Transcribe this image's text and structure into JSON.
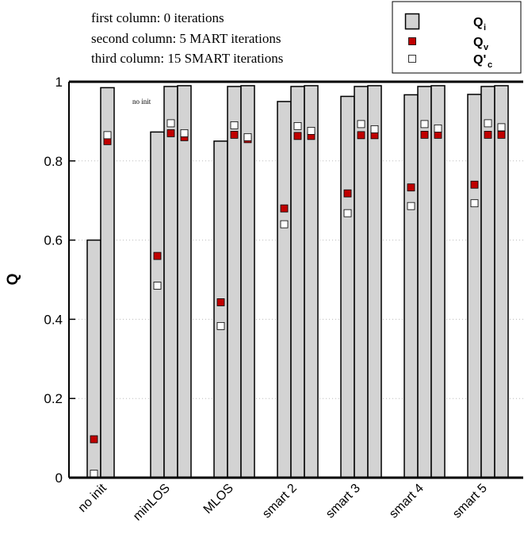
{
  "chart_data": {
    "type": "bar",
    "ylabel": "Q",
    "annotations": [
      "first column: 0 iterations",
      "second column: 5 MART iterations",
      "third column: 15 SMART iterations",
      "no init"
    ],
    "categories": [
      "no init",
      "minLOS",
      "MLOS",
      "smart 2",
      "smart 3",
      "smart 4",
      "smart 5"
    ],
    "ylim": [
      0,
      1
    ],
    "yticks": [
      0,
      0.2,
      0.4,
      0.6,
      0.8,
      1
    ],
    "grid": true,
    "series": [
      {
        "name": "Q",
        "subscript": "i",
        "color": "#d3d3d3",
        "mark": "bar",
        "values": [
          [
            0.6,
            0.985,
            null
          ],
          [
            0.873,
            0.988,
            0.99
          ],
          [
            0.85,
            0.988,
            0.99
          ],
          [
            0.95,
            0.988,
            0.99
          ],
          [
            0.963,
            0.988,
            0.99
          ],
          [
            0.967,
            0.988,
            0.99
          ],
          [
            0.968,
            0.988,
            0.99
          ]
        ]
      },
      {
        "name": "Q",
        "subscript": "v",
        "color": "#c00000",
        "mark": "square",
        "values": [
          [
            0.097,
            0.85,
            null
          ],
          [
            0.56,
            0.87,
            0.86
          ],
          [
            0.443,
            0.866,
            0.855
          ],
          [
            0.68,
            0.863,
            0.863
          ],
          [
            0.718,
            0.865,
            0.865
          ],
          [
            0.733,
            0.866,
            0.866
          ],
          [
            0.74,
            0.866,
            0.866
          ]
        ]
      },
      {
        "name": "Q'",
        "subscript": "c",
        "color": "#ffffff",
        "mark": "square",
        "values": [
          [
            0.01,
            0.865,
            null
          ],
          [
            0.485,
            0.895,
            0.87
          ],
          [
            0.383,
            0.89,
            0.86
          ],
          [
            0.64,
            0.888,
            0.876
          ],
          [
            0.668,
            0.893,
            0.88
          ],
          [
            0.686,
            0.893,
            0.882
          ],
          [
            0.693,
            0.895,
            0.885
          ]
        ]
      }
    ]
  }
}
